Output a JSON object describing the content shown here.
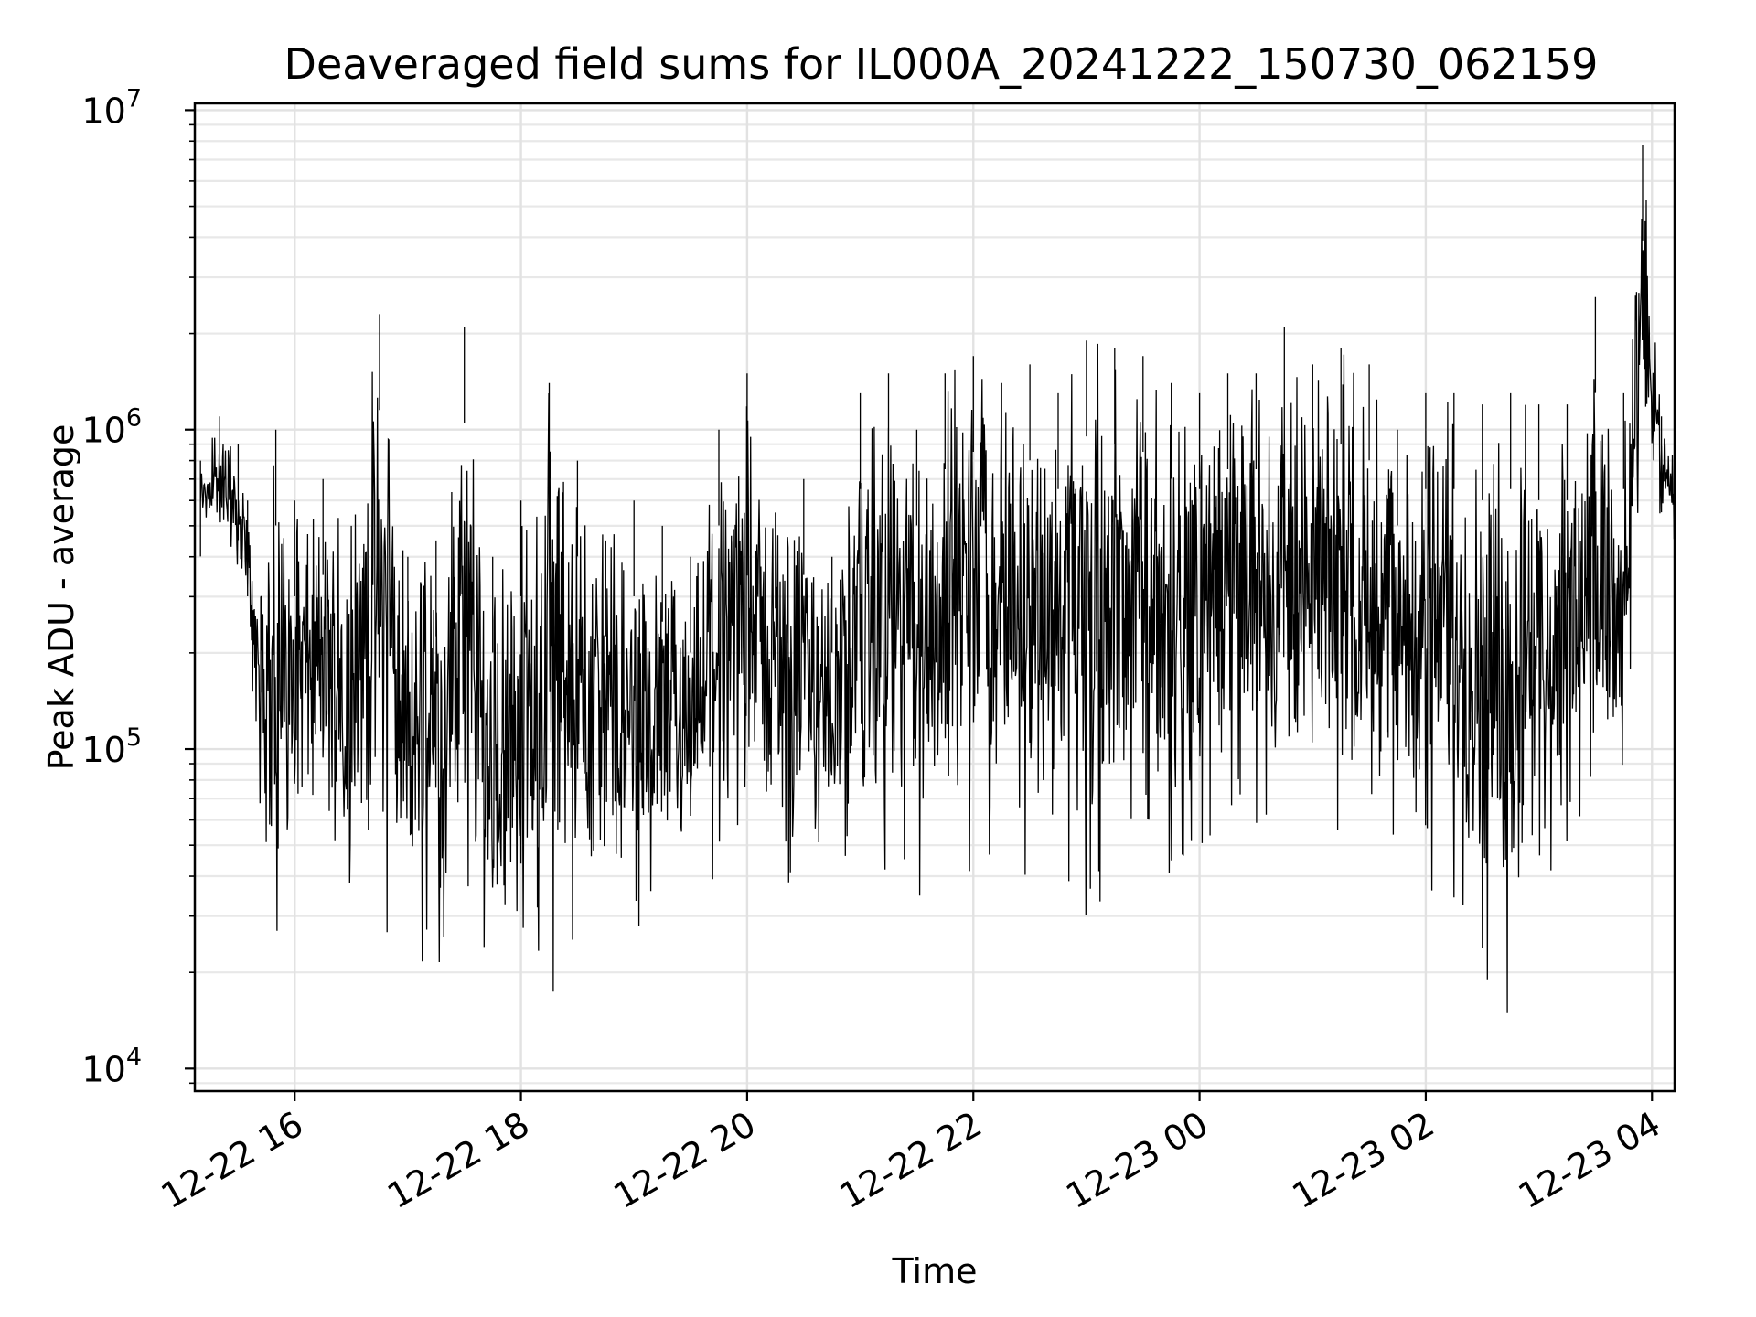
{
  "chart_data": {
    "type": "line",
    "title": "Deaveraged field sums for IL000A_20241222_150730_062159",
    "xlabel": "Time",
    "ylabel": "Peak ADU - average",
    "yscale": "log",
    "xlim": [
      "2024-12-22 15:07",
      "2024-12-23 04:12"
    ],
    "ylim": [
      8500,
      10500000
    ],
    "grid": true,
    "legend": "none",
    "line_color": "#000000",
    "x_ticks": [
      {
        "value": "2024-12-22 16:00",
        "label": "12-22 16"
      },
      {
        "value": "2024-12-22 18:00",
        "label": "12-22 18"
      },
      {
        "value": "2024-12-22 20:00",
        "label": "12-22 20"
      },
      {
        "value": "2024-12-22 22:00",
        "label": "12-22 22"
      },
      {
        "value": "2024-12-23 00:00",
        "label": "12-23 00"
      },
      {
        "value": "2024-12-23 02:00",
        "label": "12-23 02"
      },
      {
        "value": "2024-12-23 04:00",
        "label": "12-23 04"
      }
    ],
    "y_ticks": [
      {
        "value": 10000,
        "base": "10",
        "exp": "4"
      },
      {
        "value": 100000,
        "base": "10",
        "exp": "5"
      },
      {
        "value": 1000000,
        "base": "10",
        "exp": "6"
      },
      {
        "value": 10000000,
        "base": "10",
        "exp": "7"
      }
    ],
    "series": [
      {
        "x": [
          "2024-12-22 15:10",
          "2024-12-22 15:20",
          "2024-12-22 15:30",
          "2024-12-22 15:35",
          "2024-12-22 15:42",
          "2024-12-22 15:50",
          "2024-12-22 16:00",
          "2024-12-22 16:15",
          "2024-12-22 16:30",
          "2024-12-22 16:45",
          "2024-12-22 17:00",
          "2024-12-22 17:15",
          "2024-12-22 17:30",
          "2024-12-22 17:45",
          "2024-12-22 18:00",
          "2024-12-22 18:15",
          "2024-12-22 18:30",
          "2024-12-22 18:45",
          "2024-12-22 19:00",
          "2024-12-22 19:15",
          "2024-12-22 19:30",
          "2024-12-22 19:45",
          "2024-12-22 20:00",
          "2024-12-22 20:15",
          "2024-12-22 20:30",
          "2024-12-22 20:45",
          "2024-12-22 21:00",
          "2024-12-22 21:15",
          "2024-12-22 21:30",
          "2024-12-22 21:45",
          "2024-12-22 22:00",
          "2024-12-22 22:15",
          "2024-12-22 22:30",
          "2024-12-22 22:45",
          "2024-12-22 23:00",
          "2024-12-22 23:15",
          "2024-12-22 23:30",
          "2024-12-22 23:45",
          "2024-12-23 00:00",
          "2024-12-23 00:15",
          "2024-12-23 00:30",
          "2024-12-23 00:45",
          "2024-12-23 01:00",
          "2024-12-23 01:15",
          "2024-12-23 01:30",
          "2024-12-23 01:45",
          "2024-12-23 02:00",
          "2024-12-23 02:15",
          "2024-12-23 02:30",
          "2024-12-23 02:45",
          "2024-12-23 03:00",
          "2024-12-23 03:15",
          "2024-12-23 03:30",
          "2024-12-23 03:45",
          "2024-12-23 03:55",
          "2024-12-23 04:05",
          "2024-12-23 04:12"
        ],
        "envelope_high": [
          800000,
          1100000,
          900000,
          600000,
          300000,
          1000000,
          600000,
          700000,
          500000,
          2300000,
          400000,
          450000,
          2100000,
          400000,
          600000,
          1400000,
          800000,
          450000,
          600000,
          500000,
          400000,
          1000000,
          1500000,
          550000,
          700000,
          400000,
          1300000,
          1500000,
          1000000,
          1500000,
          1700000,
          1400000,
          1600000,
          1300000,
          1900000,
          1800000,
          1700000,
          1400000,
          1300000,
          1500000,
          1500000,
          2100000,
          1600000,
          1800000,
          1600000,
          1000000,
          1300000,
          1300000,
          1200000,
          1300000,
          1200000,
          1200000,
          2600000,
          1300000,
          7800000,
          1100000,
          900000
        ],
        "envelope_low": [
          450000,
          400000,
          300000,
          250000,
          60000,
          14500,
          40000,
          35000,
          30000,
          25000,
          20000,
          22000,
          15500,
          12000,
          22000,
          15000,
          25000,
          22000,
          20000,
          25000,
          30000,
          35000,
          40000,
          35000,
          38000,
          40000,
          35000,
          30000,
          33000,
          38000,
          42000,
          40000,
          40000,
          38000,
          22000,
          30000,
          50000,
          30000,
          45000,
          60000,
          55000,
          50000,
          42000,
          38000,
          45000,
          40000,
          35000,
          32000,
          19000,
          12000,
          35000,
          30000,
          35000,
          30000,
          500000,
          480000,
          450000
        ]
      }
    ]
  }
}
